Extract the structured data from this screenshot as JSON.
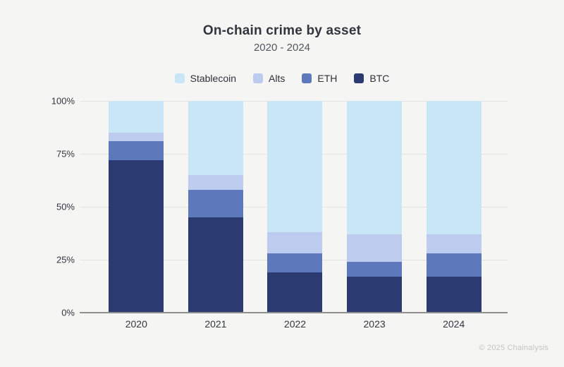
{
  "title": "On-chain crime by asset",
  "subtitle": "2020 - 2024",
  "footer": "© 2025 Chainalysis",
  "colors": {
    "background": "#f5f5f4",
    "gridline": "#e4e3e1",
    "axis_line": "#8f8f8f",
    "stablecoin": "#c9e6f7",
    "alts": "#bdccee",
    "eth": "#5e78bc",
    "btc": "#2b3a70"
  },
  "chart_data": {
    "type": "bar",
    "variant": "stacked-100-percent",
    "title": "On-chain crime by asset",
    "subtitle": "2020 - 2024",
    "xlabel": "",
    "ylabel": "",
    "categories": [
      "2020",
      "2021",
      "2022",
      "2023",
      "2024"
    ],
    "series": [
      {
        "name": "BTC",
        "color": "#2b3a70",
        "values": [
          72,
          45,
          19,
          17,
          17
        ]
      },
      {
        "name": "ETH",
        "color": "#5e78bc",
        "values": [
          9,
          13,
          9,
          7,
          11
        ]
      },
      {
        "name": "Alts",
        "color": "#bdccee",
        "values": [
          4,
          7,
          10,
          13,
          9
        ]
      },
      {
        "name": "Stablecoin",
        "color": "#c9e6f7",
        "values": [
          15,
          35,
          62,
          63,
          63
        ]
      }
    ],
    "legend": [
      "Stablecoin",
      "Alts",
      "ETH",
      "BTC"
    ],
    "legend_position": "top",
    "ylim": [
      0,
      100
    ],
    "yticks": [
      {
        "value": 0,
        "label": "0%"
      },
      {
        "value": 25,
        "label": "25%"
      },
      {
        "value": 50,
        "label": "50%"
      },
      {
        "value": 75,
        "label": "75%"
      },
      {
        "value": 100,
        "label": "100%"
      }
    ],
    "grid": true,
    "units": "%"
  }
}
